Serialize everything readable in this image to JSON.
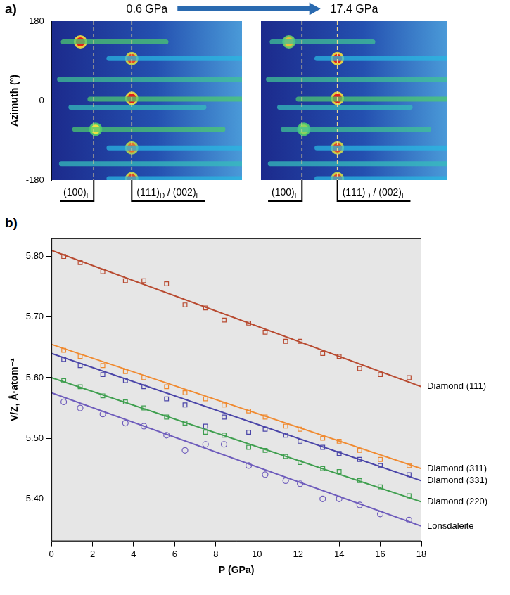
{
  "chart_data": [
    {
      "type": "heatmap",
      "panel": "a)",
      "title": "0.6 GPa",
      "y_label": "Azimuth (°)",
      "xlim": [
        0,
        10
      ],
      "ylim": [
        -180,
        180
      ],
      "yticks": [
        -180,
        0,
        180
      ],
      "tick_labels": "y",
      "grid": false,
      "markers": [
        {
          "x": 2.2,
          "label": "(100)L"
        },
        {
          "x": 4.2,
          "label": "(111)D / (002)L"
        }
      ],
      "streaks": [
        {
          "azimuth": 133,
          "x_start": 0.6,
          "x_end": 6,
          "intensity": 0.5
        },
        {
          "azimuth": 95,
          "x_start": 3,
          "x_end": 10,
          "intensity": 0.35
        },
        {
          "azimuth": 48,
          "x_start": 0.4,
          "x_end": 10,
          "intensity": 0.45
        },
        {
          "azimuth": 3,
          "x_start": 2,
          "x_end": 10,
          "intensity": 0.5
        },
        {
          "azimuth": -15,
          "x_start": 1,
          "x_end": 8,
          "intensity": 0.4
        },
        {
          "azimuth": -65,
          "x_start": 1.2,
          "x_end": 9,
          "intensity": 0.5
        },
        {
          "azimuth": -107,
          "x_start": 3,
          "x_end": 10,
          "intensity": 0.35
        },
        {
          "azimuth": -143,
          "x_start": 0.5,
          "x_end": 10,
          "intensity": 0.4
        },
        {
          "azimuth": -177,
          "x_start": 3,
          "x_end": 10,
          "intensity": 0.35
        }
      ],
      "spots": [
        {
          "x": 1.5,
          "azimuth": 133,
          "intensity": 1
        },
        {
          "x": 4.2,
          "azimuth": 95,
          "intensity": 0.95
        },
        {
          "x": 4.2,
          "azimuth": 5,
          "intensity": 1
        },
        {
          "x": 2.3,
          "azimuth": -65,
          "intensity": 0.75
        },
        {
          "x": 4.2,
          "azimuth": -107,
          "intensity": 0.9
        },
        {
          "x": 4.2,
          "azimuth": -177,
          "intensity": 0.95
        }
      ]
    },
    {
      "type": "heatmap",
      "title": "17.4 GPa",
      "xlim": [
        0,
        10
      ],
      "ylim": [
        -180,
        180
      ],
      "yticks": [
        -180,
        0,
        180
      ],
      "tick_labels": false,
      "grid": false,
      "markers": [
        {
          "x": 2.2,
          "label": "(100)L"
        },
        {
          "x": 4.1,
          "label": "(111)D / (002)L"
        }
      ],
      "streaks": [
        {
          "azimuth": 133,
          "x_start": 0.6,
          "x_end": 6,
          "intensity": 0.45
        },
        {
          "azimuth": 95,
          "x_start": 3,
          "x_end": 10,
          "intensity": 0.35
        },
        {
          "azimuth": 48,
          "x_start": 0.4,
          "x_end": 10,
          "intensity": 0.45
        },
        {
          "azimuth": 3,
          "x_start": 2,
          "x_end": 10,
          "intensity": 0.5
        },
        {
          "azimuth": -15,
          "x_start": 1,
          "x_end": 8,
          "intensity": 0.4
        },
        {
          "azimuth": -65,
          "x_start": 1.2,
          "x_end": 9,
          "intensity": 0.45
        },
        {
          "azimuth": -107,
          "x_start": 3,
          "x_end": 10,
          "intensity": 0.35
        },
        {
          "azimuth": -143,
          "x_start": 0.5,
          "x_end": 10,
          "intensity": 0.4
        },
        {
          "azimuth": -177,
          "x_start": 3,
          "x_end": 10,
          "intensity": 0.35
        }
      ],
      "spots": [
        {
          "x": 1.5,
          "azimuth": 133,
          "intensity": 0.8
        },
        {
          "x": 4.1,
          "azimuth": 95,
          "intensity": 1
        },
        {
          "x": 4.1,
          "azimuth": 5,
          "intensity": 1
        },
        {
          "x": 2.3,
          "azimuth": -65,
          "intensity": 0.6
        },
        {
          "x": 4.1,
          "azimuth": -107,
          "intensity": 0.95
        },
        {
          "x": 4.1,
          "azimuth": -177,
          "intensity": 0.95
        }
      ]
    },
    {
      "type": "scatter",
      "panel": "b)",
      "x_label": "P (GPa)",
      "y_label": "V/Z, Å·atom⁻¹",
      "xlim": [
        0,
        18
      ],
      "xticks": [
        0,
        2,
        4,
        6,
        8,
        10,
        12,
        14,
        16,
        18
      ],
      "ylim": [
        5.33,
        5.83
      ],
      "yticks": [
        5.4,
        5.5,
        5.6,
        5.7,
        5.8
      ],
      "grid": false,
      "x": [
        0.6,
        1.4,
        2.5,
        3.6,
        4.5,
        5.6,
        6.5,
        7.5,
        8.4,
        9.6,
        10.4,
        11.4,
        12.1,
        13.2,
        14.0,
        15.0,
        16.0,
        17.4
      ],
      "fit_x": [
        0,
        18
      ],
      "series": [
        {
          "name": "Diamond (111)",
          "color": "#b84a30",
          "marker": "square",
          "values": [
            5.8,
            5.79,
            5.775,
            5.76,
            5.76,
            5.755,
            5.72,
            5.715,
            5.695,
            5.69,
            5.675,
            5.66,
            5.66,
            5.64,
            5.635,
            5.615,
            5.605,
            5.6
          ],
          "fit": [
            5.81,
            5.585
          ]
        },
        {
          "name": "Diamond (311)",
          "color": "#f08a30",
          "marker": "square",
          "values": [
            5.645,
            5.635,
            5.62,
            5.61,
            5.6,
            5.585,
            5.575,
            5.565,
            5.555,
            5.545,
            5.535,
            5.52,
            5.515,
            5.5,
            5.495,
            5.48,
            5.465,
            5.455
          ],
          "fit": [
            5.655,
            5.45
          ]
        },
        {
          "name": "Diamond (331)",
          "color": "#4a45a8",
          "marker": "square",
          "values": [
            5.63,
            5.62,
            5.605,
            5.595,
            5.585,
            5.565,
            5.555,
            5.52,
            5.535,
            5.51,
            5.515,
            5.505,
            5.495,
            5.485,
            5.475,
            5.465,
            5.455,
            5.44
          ],
          "fit": [
            5.64,
            5.43
          ]
        },
        {
          "name": "Diamond (220)",
          "color": "#3f9f4f",
          "marker": "square",
          "values": [
            5.595,
            5.585,
            5.57,
            5.56,
            5.55,
            5.535,
            5.525,
            5.51,
            5.505,
            5.485,
            5.48,
            5.47,
            5.46,
            5.45,
            5.445,
            5.43,
            5.42,
            5.405
          ],
          "fit": [
            5.6,
            5.395
          ]
        },
        {
          "name": "Lonsdaleite",
          "color": "#6e5cbc",
          "marker": "circle",
          "values": [
            5.56,
            5.55,
            5.54,
            5.525,
            5.52,
            5.505,
            5.48,
            5.49,
            5.49,
            5.455,
            5.44,
            5.43,
            5.425,
            5.4,
            5.4,
            5.39,
            5.375,
            5.365
          ],
          "fit": [
            5.575,
            5.355
          ]
        }
      ]
    }
  ]
}
